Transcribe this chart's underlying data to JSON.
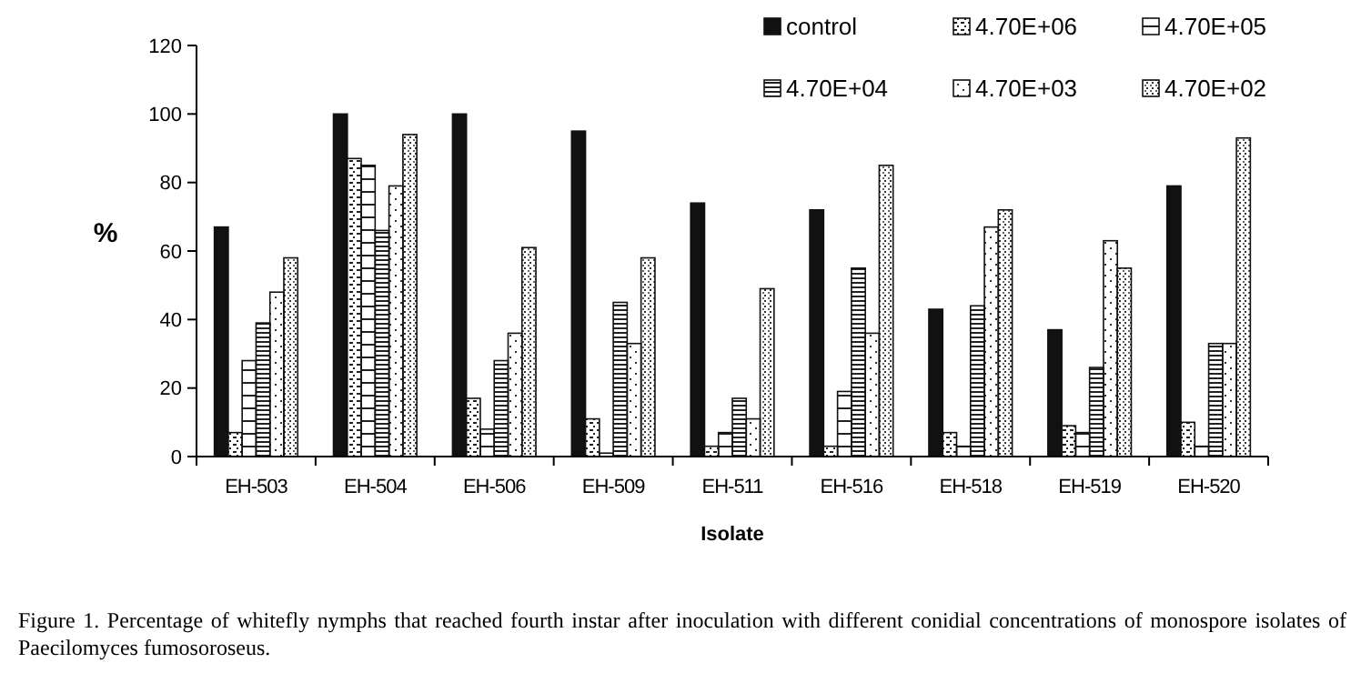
{
  "chart_data": {
    "type": "bar",
    "xlabel": "Isolate",
    "ylabel": "%",
    "categories": [
      "EH-503",
      "EH-504",
      "EH-506",
      "EH-509",
      "EH-511",
      "EH-516",
      "EH-518",
      "EH-519",
      "EH-520"
    ],
    "series": [
      {
        "name": "control",
        "color": "#111111",
        "values": [
          67,
          100,
          100,
          95,
          74,
          72,
          43,
          37,
          79
        ]
      },
      {
        "name": "4.70E+06",
        "color": "#ffffff",
        "values": [
          7,
          87,
          17,
          11,
          3,
          3,
          7,
          9,
          10
        ]
      },
      {
        "name": "4.70E+05",
        "color": "#ffffff",
        "values": [
          28,
          85,
          8,
          1,
          7,
          19,
          3,
          7,
          3
        ]
      },
      {
        "name": "4.70E+04",
        "color": "#ffffff",
        "values": [
          39,
          66,
          28,
          45,
          17,
          55,
          44,
          26,
          33
        ]
      },
      {
        "name": "4.70E+03",
        "color": "#ffffff",
        "values": [
          48,
          79,
          36,
          33,
          11,
          36,
          67,
          63,
          33
        ]
      },
      {
        "name": "4.70E+02",
        "color": "#ffffff",
        "values": [
          58,
          94,
          61,
          58,
          49,
          85,
          72,
          55,
          93
        ]
      }
    ],
    "ylim": [
      0,
      120
    ],
    "yticks": [
      0,
      20,
      40,
      60,
      80,
      100,
      120
    ],
    "grid": false,
    "legend": "top right",
    "annotations": [
      "Figure 1. Percentage of whitefly nymphs that reached fourth instar after inoculation with different conidial concentrations of monospore isolates of Paecilomyces fumosoroseus."
    ]
  }
}
